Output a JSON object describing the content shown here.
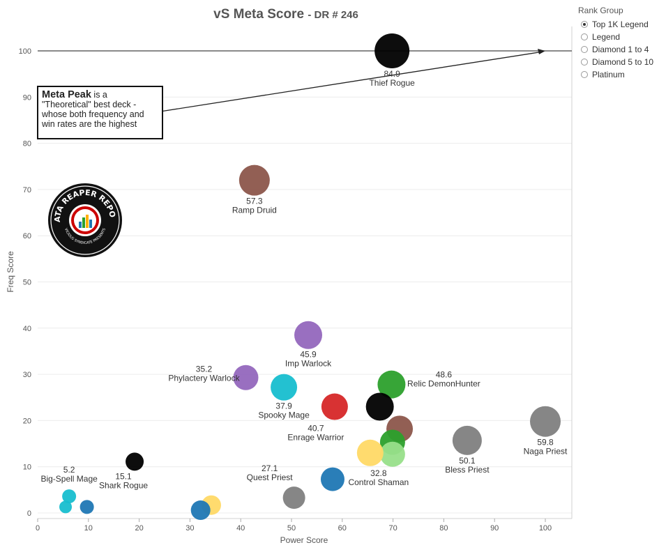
{
  "chart_data": {
    "type": "scatter",
    "title": "vS Meta Score",
    "subtitle": "DR # 246",
    "xlabel": "Power Score",
    "ylabel": "Freq Score",
    "xlim": [
      0,
      105
    ],
    "ylim": [
      -1,
      105
    ],
    "x_ticks": [
      "0",
      "10",
      "20",
      "30",
      "40",
      "50",
      "60",
      "70",
      "80",
      "90",
      "100"
    ],
    "y_ticks": [
      "0",
      "10",
      "20",
      "30",
      "40",
      "50",
      "60",
      "70",
      "80",
      "90",
      "100"
    ],
    "grid": "horizontal",
    "reference_line_y": 100,
    "points": [
      {
        "x": 69.8,
        "y": 100,
        "color": "#000000",
        "score": "84.9",
        "label": "Thief Rogue",
        "r": 25
      },
      {
        "x": 42.7,
        "y": 72,
        "color": "#8c564b",
        "score": "57.3",
        "label": "Ramp Druid",
        "r": 22
      },
      {
        "x": 53.3,
        "y": 38.5,
        "color": "#9467bd",
        "score": "45.9",
        "label": "Imp Warlock",
        "r": 20
      },
      {
        "x": 41,
        "y": 29.3,
        "color": "#9467bd",
        "score": "35.2",
        "label": "Phylactery Warlock",
        "r": 18
      },
      {
        "x": 48.5,
        "y": 27.2,
        "color": "#17becf",
        "score": "37.9",
        "label": "Spooky Mage",
        "r": 19
      },
      {
        "x": 58.5,
        "y": 23,
        "color": "#d62728",
        "score": "40.7",
        "label": "Enrage Warrior",
        "r": 19
      },
      {
        "x": 69.7,
        "y": 27.8,
        "color": "#2ca02c",
        "score": "48.6",
        "label": "Relic DemonHunter",
        "r": 20
      },
      {
        "x": 67.4,
        "y": 23,
        "color": "#000000",
        "score": "",
        "label": "",
        "r": 20
      },
      {
        "x": 71.3,
        "y": 18.2,
        "color": "#8c564b",
        "score": "",
        "label": "",
        "r": 19
      },
      {
        "x": 69.9,
        "y": 15.3,
        "color": "#2ca02c",
        "score": "",
        "label": "",
        "r": 18
      },
      {
        "x": 69.9,
        "y": 12.7,
        "color": "#98df8a",
        "score": "",
        "label": "",
        "r": 18
      },
      {
        "x": 65.5,
        "y": 13,
        "color": "#ffd966",
        "score": "32.8",
        "label": "Control Shaman",
        "r": 19
      },
      {
        "x": 100,
        "y": 19.8,
        "color": "#7f7f7f",
        "score": "59.8",
        "label": "Naga Priest",
        "r": 22
      },
      {
        "x": 84.6,
        "y": 15.7,
        "color": "#7f7f7f",
        "score": "50.1",
        "label": "Bless Priest",
        "r": 21
      },
      {
        "x": 58.1,
        "y": 7.3,
        "color": "#1f77b4",
        "score": "",
        "label": "",
        "r": 17
      },
      {
        "x": 50.5,
        "y": 3.3,
        "color": "#7f7f7f",
        "score": "27.1",
        "label": "Quest Priest",
        "r": 16
      },
      {
        "x": 34.2,
        "y": 1.7,
        "color": "#ffd966",
        "score": "",
        "label": "",
        "r": 14
      },
      {
        "x": 32.1,
        "y": 0.6,
        "color": "#1f77b4",
        "score": "",
        "label": "",
        "r": 14
      },
      {
        "x": 19.1,
        "y": 11.1,
        "color": "#000000",
        "score": "15.1",
        "label": "Shark Rogue",
        "r": 13
      },
      {
        "x": 6.2,
        "y": 3.6,
        "color": "#17becf",
        "score": "5.2",
        "label": "Big-Spell Mage",
        "r": 10
      },
      {
        "x": 5.5,
        "y": 1.3,
        "color": "#17becf",
        "score": "",
        "label": "",
        "r": 9
      },
      {
        "x": 9.7,
        "y": 1.3,
        "color": "#1f77b4",
        "score": "",
        "label": "",
        "r": 10
      }
    ]
  },
  "annotation": {
    "strong": "Meta Peak",
    "line1_rest": " is a",
    "line2": "\"Theoretical\" best deck -",
    "line3": "whose both frequency and",
    "line4": "win rates are the highest"
  },
  "legend": {
    "title": "Rank Group",
    "items": [
      {
        "label": "Top 1K Legend",
        "checked": true
      },
      {
        "label": "Legend",
        "checked": false
      },
      {
        "label": "Diamond 1 to 4",
        "checked": false
      },
      {
        "label": "Diamond 5 to 10",
        "checked": false
      },
      {
        "label": "Platinum",
        "checked": false
      }
    ]
  },
  "logo": {
    "text_top": "DATA REAPER REPORT",
    "text_bottom": "VICIOUS SYNDICATE PRESENTS"
  }
}
